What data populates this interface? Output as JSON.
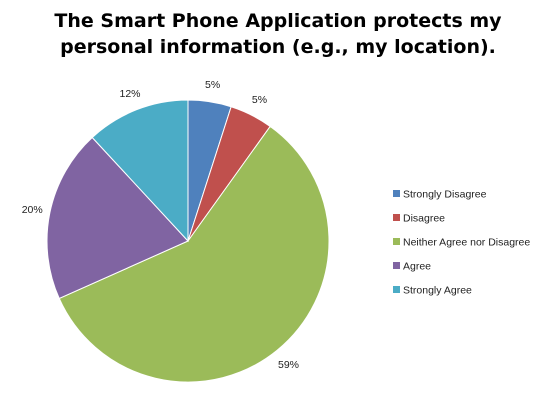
{
  "chart_data": {
    "type": "pie",
    "title_lines": [
      "The Smart Phone Application protects my",
      "personal information (e.g., my location)."
    ],
    "legend_position": "right",
    "start_angle_deg": 0,
    "direction": "clockwise",
    "slices": [
      {
        "name": "Strongly Disagree",
        "value": 5,
        "label": "5%",
        "color": "#4F81BD"
      },
      {
        "name": "Disagree",
        "value": 5,
        "label": "5%",
        "color": "#C0504D"
      },
      {
        "name": "Neither Agree nor Disagree",
        "value": 59,
        "label": "59%",
        "color": "#9BBB59"
      },
      {
        "name": "Agree",
        "value": 20,
        "label": "20%",
        "color": "#8064A2"
      },
      {
        "name": "Strongly Agree",
        "value": 12,
        "label": "12%",
        "color": "#4BACC6"
      }
    ]
  }
}
